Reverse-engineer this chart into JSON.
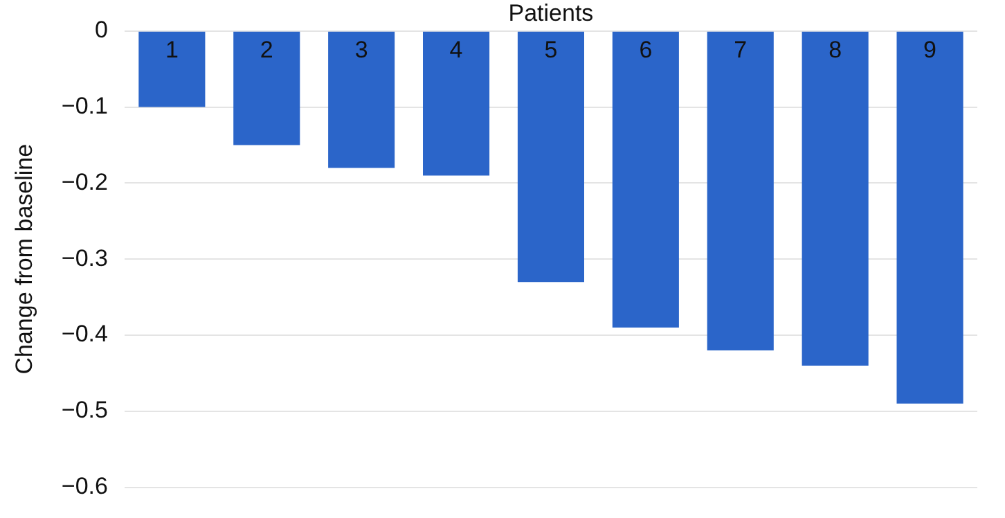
{
  "chart_data": {
    "type": "bar",
    "xlabel": "Patients",
    "ylabel": "Change from baseline",
    "categories": [
      "1",
      "2",
      "3",
      "4",
      "5",
      "6",
      "7",
      "8",
      "9"
    ],
    "values": [
      -0.1,
      -0.15,
      -0.18,
      -0.19,
      -0.33,
      -0.39,
      -0.42,
      -0.44,
      -0.49
    ],
    "color": "#2b65c9",
    "ylim": [
      -0.6,
      0
    ],
    "yticks": [
      0,
      -0.1,
      -0.2,
      -0.3,
      -0.4,
      -0.5,
      -0.6
    ],
    "grid": "y",
    "legend": false
  }
}
